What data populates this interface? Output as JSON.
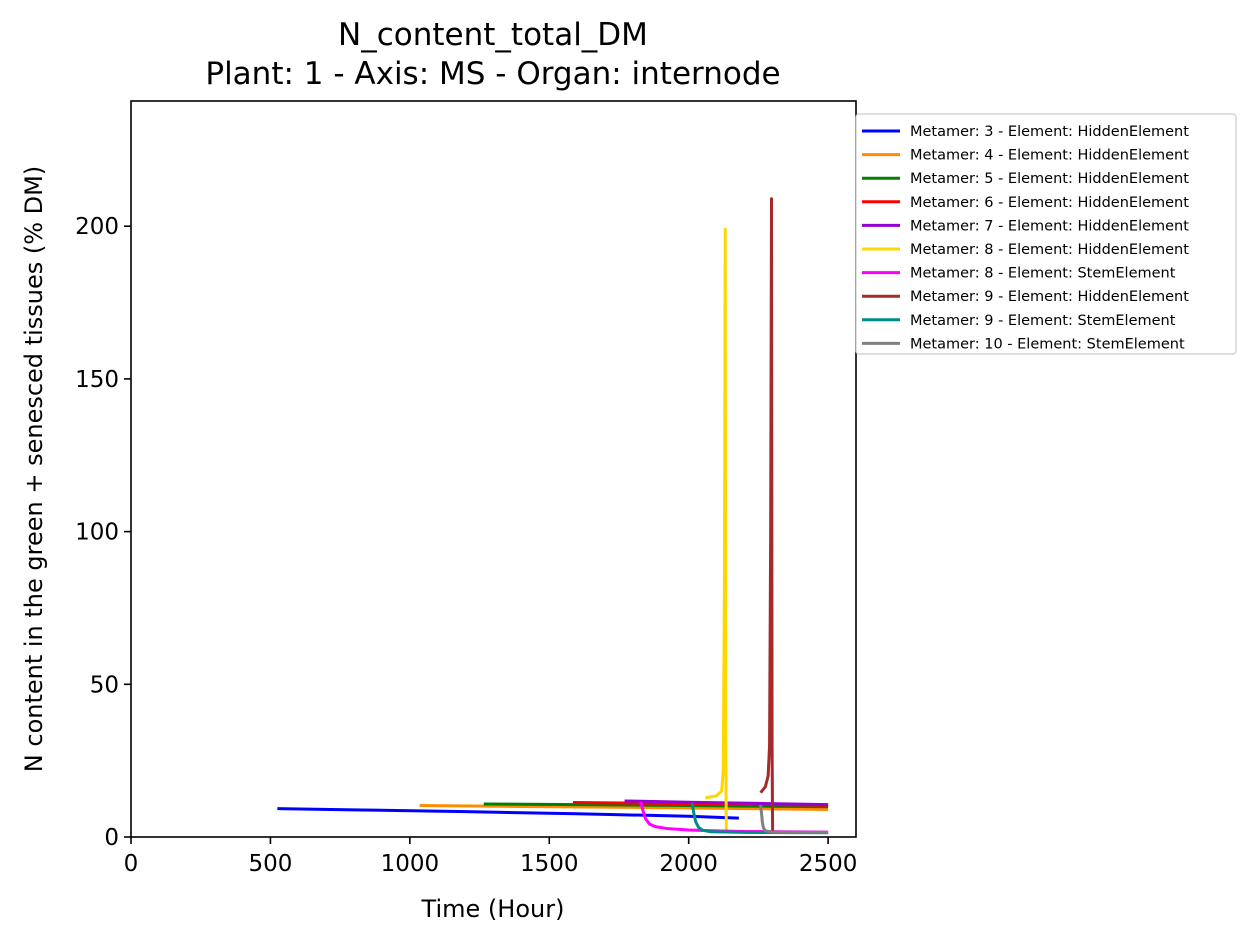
{
  "chart_data": {
    "type": "line",
    "title": "N_content_total_DM",
    "subtitle": "Plant: 1 - Axis: MS - Organ: internode",
    "xlabel": "Time (Hour)",
    "ylabel": "N content in the green + senesced tissues (% DM)",
    "xlim": [
      0,
      2600
    ],
    "ylim": [
      0,
      241
    ],
    "xticks": [
      0,
      500,
      1000,
      1500,
      2000,
      2500
    ],
    "yticks": [
      0,
      50,
      100,
      150,
      200
    ],
    "grid": false,
    "legend_position": "outside-right",
    "series": [
      {
        "name": "Metamer: 3 - Element: HiddenElement",
        "color": "#0000ff",
        "points": [
          [
            525,
            9.3
          ],
          [
            800,
            8.9
          ],
          [
            1200,
            8.3
          ],
          [
            1600,
            7.6
          ],
          [
            2000,
            6.8
          ],
          [
            2180,
            6.2
          ]
        ]
      },
      {
        "name": "Metamer: 4 - Element: HiddenElement",
        "color": "#ff8c00",
        "points": [
          [
            1035,
            10.3
          ],
          [
            1400,
            10.0
          ],
          [
            1800,
            9.7
          ],
          [
            2200,
            9.3
          ],
          [
            2500,
            9.0
          ]
        ]
      },
      {
        "name": "Metamer: 5 - Element: HiddenElement",
        "color": "#008000",
        "points": [
          [
            1265,
            10.8
          ],
          [
            1600,
            10.6
          ],
          [
            2000,
            10.3
          ],
          [
            2500,
            9.9
          ]
        ]
      },
      {
        "name": "Metamer: 6 - Element: HiddenElement",
        "color": "#ff0000",
        "points": [
          [
            1585,
            11.3
          ],
          [
            1900,
            11.0
          ],
          [
            2200,
            10.7
          ],
          [
            2500,
            10.4
          ]
        ]
      },
      {
        "name": "Metamer: 7 - Element: HiddenElement",
        "color": "#9400d3",
        "points": [
          [
            1770,
            11.8
          ],
          [
            2000,
            11.4
          ],
          [
            2250,
            11.0
          ],
          [
            2500,
            10.6
          ]
        ]
      },
      {
        "name": "Metamer: 8 - Element: HiddenElement",
        "color": "#ffd700",
        "points": [
          [
            2060,
            12.8
          ],
          [
            2100,
            13.5
          ],
          [
            2118,
            15
          ],
          [
            2124,
            22
          ],
          [
            2128,
            80
          ],
          [
            2131,
            199
          ],
          [
            2133,
            30
          ],
          [
            2135,
            2
          ]
        ]
      },
      {
        "name": "Metamer: 8 - Element: StemElement",
        "color": "#ff00ff",
        "points": [
          [
            1828,
            11.5
          ],
          [
            1835,
            9
          ],
          [
            1845,
            6
          ],
          [
            1860,
            4.2
          ],
          [
            1880,
            3.4
          ],
          [
            1920,
            2.8
          ],
          [
            2000,
            2.3
          ],
          [
            2100,
            2.0
          ],
          [
            2200,
            1.8
          ],
          [
            2500,
            1.6
          ]
        ]
      },
      {
        "name": "Metamer: 9 - Element: HiddenElement",
        "color": "#a52a2a",
        "points": [
          [
            2258,
            14.5
          ],
          [
            2275,
            16.5
          ],
          [
            2285,
            20
          ],
          [
            2290,
            30
          ],
          [
            2294,
            100
          ],
          [
            2297,
            209
          ],
          [
            2299,
            30
          ],
          [
            2301,
            2
          ]
        ]
      },
      {
        "name": "Metamer: 9 - Element: StemElement",
        "color": "#008b8b",
        "points": [
          [
            2012,
            11.2
          ],
          [
            2018,
            8
          ],
          [
            2025,
            5
          ],
          [
            2035,
            3.2
          ],
          [
            2050,
            2.2
          ],
          [
            2080,
            1.7
          ],
          [
            2200,
            1.5
          ],
          [
            2500,
            1.4
          ]
        ]
      },
      {
        "name": "Metamer: 10 - Element: StemElement",
        "color": "#808080",
        "points": [
          [
            2258,
            10.5
          ],
          [
            2261,
            8
          ],
          [
            2264,
            5
          ],
          [
            2268,
            3
          ],
          [
            2275,
            2
          ],
          [
            2300,
            1.6
          ],
          [
            2400,
            1.5
          ],
          [
            2500,
            1.5
          ]
        ]
      }
    ]
  }
}
